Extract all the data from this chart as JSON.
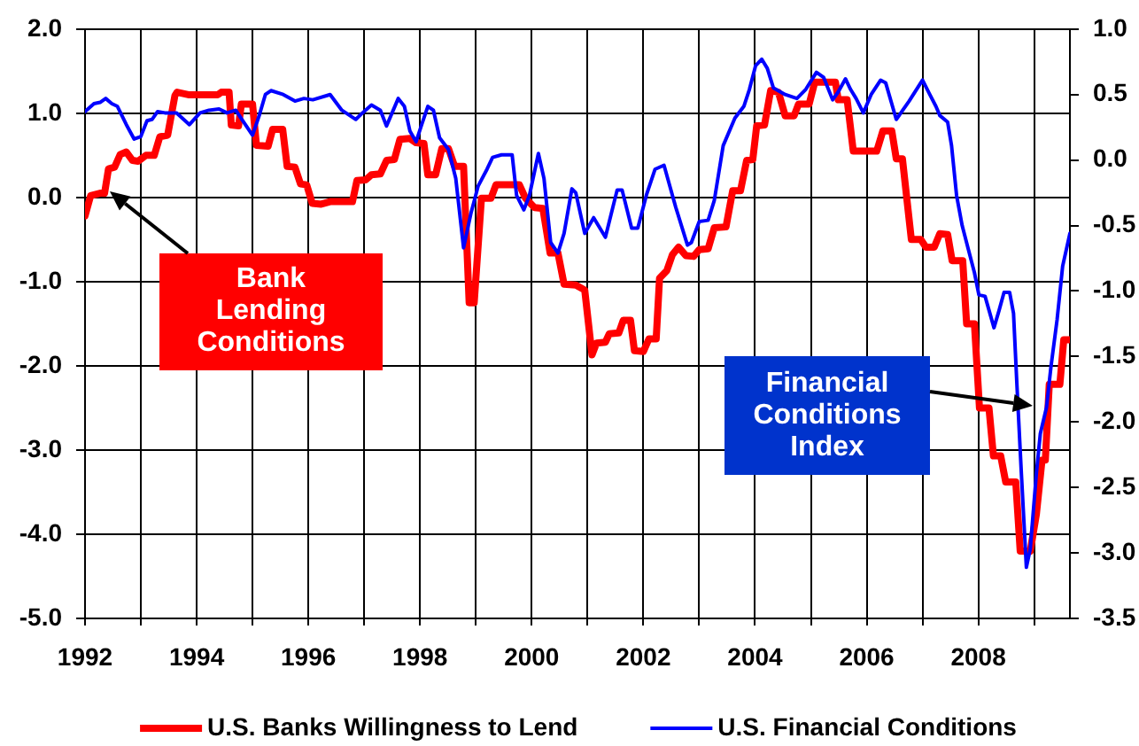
{
  "chart_data": {
    "type": "line",
    "series": [
      {
        "name": "U.S. Banks Willingness to Lend",
        "color": "#ff0000",
        "axis": "y",
        "x": [
          1992.0,
          1992.1,
          1992.27,
          1992.35,
          1992.42,
          1992.53,
          1992.63,
          1992.74,
          1992.85,
          1992.95,
          1993.09,
          1993.24,
          1993.34,
          1993.48,
          1993.61,
          1993.65,
          1993.85,
          1994.38,
          1994.44,
          1994.58,
          1994.62,
          1994.75,
          1994.8,
          1995.0,
          1995.07,
          1995.28,
          1995.36,
          1995.54,
          1995.62,
          1995.76,
          1995.86,
          1995.97,
          1996.07,
          1996.23,
          1996.39,
          1996.79,
          1996.87,
          1997.03,
          1997.13,
          1997.29,
          1997.4,
          1997.54,
          1997.64,
          1997.82,
          1997.93,
          1998.07,
          1998.14,
          1998.28,
          1998.39,
          1998.51,
          1998.62,
          1998.78,
          1998.88,
          1998.97,
          1999.1,
          1999.27,
          1999.36,
          1999.78,
          1999.89,
          2000.05,
          2000.2,
          2000.33,
          2000.47,
          2000.58,
          2000.79,
          2000.95,
          2001.08,
          2001.16,
          2001.32,
          2001.39,
          2001.56,
          2001.64,
          2001.77,
          2001.84,
          2002.0,
          2002.1,
          2002.23,
          2002.29,
          2002.42,
          2002.52,
          2002.63,
          2002.76,
          2002.9,
          2003.0,
          2003.16,
          2003.27,
          2003.48,
          2003.6,
          2003.74,
          2003.85,
          2003.96,
          2004.03,
          2004.17,
          2004.28,
          2004.42,
          2004.54,
          2004.7,
          2004.78,
          2004.97,
          2005.07,
          2005.44,
          2005.49,
          2005.65,
          2005.76,
          2006.18,
          2006.29,
          2006.45,
          2006.53,
          2006.64,
          2006.8,
          2006.97,
          2007.06,
          2007.21,
          2007.31,
          2007.45,
          2007.53,
          2007.72,
          2007.79,
          2007.93,
          2008.02,
          2008.19,
          2008.27,
          2008.4,
          2008.49,
          2008.67,
          2008.75,
          2008.93,
          2009.04,
          2009.14,
          2009.2,
          2009.27,
          2009.46,
          2009.53,
          2009.64
        ],
        "values": [
          -0.22,
          0.02,
          0.05,
          0.05,
          0.34,
          0.36,
          0.51,
          0.54,
          0.44,
          0.43,
          0.5,
          0.5,
          0.72,
          0.74,
          1.21,
          1.25,
          1.22,
          1.22,
          1.25,
          1.25,
          0.86,
          0.85,
          1.11,
          1.11,
          0.62,
          0.61,
          0.81,
          0.81,
          0.37,
          0.36,
          0.16,
          0.15,
          -0.07,
          -0.08,
          -0.05,
          -0.05,
          0.2,
          0.21,
          0.27,
          0.28,
          0.44,
          0.45,
          0.69,
          0.7,
          0.65,
          0.64,
          0.27,
          0.27,
          0.58,
          0.58,
          0.37,
          0.37,
          -1.25,
          -1.25,
          -0.01,
          -0.01,
          0.15,
          0.15,
          -0.01,
          -0.12,
          -0.13,
          -0.66,
          -0.66,
          -1.03,
          -1.04,
          -1.1,
          -1.87,
          -1.73,
          -1.72,
          -1.62,
          -1.61,
          -1.46,
          -1.46,
          -1.82,
          -1.83,
          -1.68,
          -1.68,
          -0.96,
          -0.87,
          -0.68,
          -0.59,
          -0.69,
          -0.7,
          -0.62,
          -0.61,
          -0.36,
          -0.35,
          0.08,
          0.08,
          0.44,
          0.45,
          0.85,
          0.86,
          1.27,
          1.25,
          0.97,
          0.97,
          1.11,
          1.11,
          1.37,
          1.37,
          1.16,
          1.16,
          0.55,
          0.55,
          0.79,
          0.79,
          0.46,
          0.46,
          -0.5,
          -0.5,
          -0.59,
          -0.59,
          -0.43,
          -0.44,
          -0.75,
          -0.75,
          -1.5,
          -1.5,
          -2.5,
          -2.5,
          -3.07,
          -3.07,
          -3.38,
          -3.38,
          -4.2,
          -4.2,
          -3.76,
          -3.12,
          -3.12,
          -2.22,
          -2.22,
          -1.69,
          -1.69
        ]
      },
      {
        "name": "U.S. Financial Conditions",
        "color": "#0000ff",
        "axis": "y2",
        "x": [
          1992.0,
          1992.16,
          1992.27,
          1992.37,
          1992.48,
          1992.58,
          1992.74,
          1992.88,
          1993.0,
          1993.11,
          1993.2,
          1993.3,
          1993.43,
          1993.64,
          1993.87,
          1994.06,
          1994.22,
          1994.4,
          1994.54,
          1994.7,
          1994.81,
          1995.0,
          1995.12,
          1995.23,
          1995.33,
          1995.55,
          1995.76,
          1995.92,
          1996.08,
          1996.39,
          1996.6,
          1996.85,
          1996.97,
          1997.13,
          1997.29,
          1997.4,
          1997.5,
          1997.61,
          1997.72,
          1997.82,
          1997.93,
          1998.03,
          1998.14,
          1998.24,
          1998.35,
          1998.51,
          1998.64,
          1998.78,
          1998.91,
          1999.04,
          1999.2,
          1999.3,
          1999.46,
          1999.65,
          1999.73,
          1999.86,
          1999.96,
          2000.12,
          2000.22,
          2000.34,
          2000.47,
          2000.58,
          2000.72,
          2000.79,
          2000.95,
          2001.11,
          2001.32,
          2001.53,
          2001.62,
          2001.79,
          2001.9,
          2002.06,
          2002.21,
          2002.37,
          2002.58,
          2002.79,
          2002.86,
          2003.0,
          2003.16,
          2003.27,
          2003.43,
          2003.64,
          2003.8,
          2003.9,
          2004.01,
          2004.12,
          2004.22,
          2004.33,
          2004.54,
          2004.75,
          2004.91,
          2005.1,
          2005.23,
          2005.39,
          2005.49,
          2005.62,
          2005.71,
          2005.81,
          2005.94,
          2006.08,
          2006.25,
          2006.34,
          2006.53,
          2006.76,
          2007.0,
          2007.13,
          2007.24,
          2007.31,
          2007.45,
          2007.52,
          2007.61,
          2007.71,
          2007.82,
          2007.93,
          2008.01,
          2008.12,
          2008.28,
          2008.37,
          2008.46,
          2008.56,
          2008.63,
          2008.69,
          2008.77,
          2008.86,
          2008.93,
          2009.04,
          2009.11,
          2009.22,
          2009.3,
          2009.41,
          2009.51,
          2009.64
        ],
        "values": [
          0.37,
          0.43,
          0.44,
          0.47,
          0.43,
          0.41,
          0.27,
          0.16,
          0.18,
          0.3,
          0.31,
          0.37,
          0.36,
          0.36,
          0.27,
          0.36,
          0.38,
          0.39,
          0.36,
          0.38,
          0.31,
          0.19,
          0.34,
          0.5,
          0.53,
          0.5,
          0.45,
          0.47,
          0.46,
          0.5,
          0.38,
          0.31,
          0.36,
          0.42,
          0.38,
          0.26,
          0.36,
          0.47,
          0.41,
          0.22,
          0.14,
          0.27,
          0.41,
          0.38,
          0.17,
          0.08,
          -0.14,
          -0.67,
          -0.41,
          -0.2,
          -0.07,
          0.02,
          0.04,
          0.04,
          -0.27,
          -0.38,
          -0.27,
          0.05,
          -0.14,
          -0.63,
          -0.71,
          -0.56,
          -0.22,
          -0.25,
          -0.56,
          -0.44,
          -0.59,
          -0.23,
          -0.23,
          -0.52,
          -0.52,
          -0.26,
          -0.07,
          -0.04,
          -0.36,
          -0.65,
          -0.63,
          -0.47,
          -0.46,
          -0.31,
          0.11,
          0.32,
          0.41,
          0.54,
          0.72,
          0.77,
          0.7,
          0.55,
          0.5,
          0.47,
          0.54,
          0.67,
          0.63,
          0.46,
          0.52,
          0.62,
          0.54,
          0.47,
          0.36,
          0.5,
          0.61,
          0.59,
          0.31,
          0.45,
          0.61,
          0.5,
          0.41,
          0.34,
          0.29,
          0.11,
          -0.27,
          -0.5,
          -0.68,
          -0.86,
          -1.03,
          -1.04,
          -1.28,
          -1.15,
          -1.01,
          -1.01,
          -1.17,
          -1.71,
          -2.39,
          -3.11,
          -2.97,
          -2.39,
          -2.09,
          -1.89,
          -1.58,
          -1.22,
          -0.81,
          -0.56
        ]
      }
    ],
    "xlim": [
      1992,
      2009.64
    ],
    "xticks": [
      1992,
      {
        "value": 1993,
        "label": null
      },
      1994,
      {
        "value": 1995,
        "label": null
      },
      1996,
      {
        "value": 1997,
        "label": null
      },
      1998,
      {
        "value": 1999,
        "label": null
      },
      2000,
      {
        "value": 2001,
        "label": null
      },
      2002,
      {
        "value": 2003,
        "label": null
      },
      2004,
      {
        "value": 2005,
        "label": null
      },
      2006,
      {
        "value": 2007,
        "label": null
      },
      2008,
      {
        "value": 2009,
        "label": null
      }
    ],
    "ylim": [
      -5,
      2
    ],
    "yticks": [
      {
        "value": -5,
        "label": "-5.0"
      },
      {
        "value": -4,
        "label": "-4.0"
      },
      {
        "value": -3,
        "label": "-3.0"
      },
      {
        "value": -2,
        "label": "-2.0"
      },
      {
        "value": -1,
        "label": "-1.0"
      },
      {
        "value": 0,
        "label": "0.0"
      },
      {
        "value": 1,
        "label": "1.0"
      },
      {
        "value": 2,
        "label": "2.0"
      }
    ],
    "y2lim": [
      -3.5,
      1
    ],
    "y2ticks": [
      -3.5,
      {
        "value": -3,
        "label": "-3.0"
      },
      -2.5,
      {
        "value": -2,
        "label": "-2.0"
      },
      -1.5,
      {
        "value": -1,
        "label": "-1.0"
      },
      -0.5,
      {
        "value": 0,
        "label": "0.0"
      },
      0.5,
      {
        "value": 1,
        "label": "1.0"
      }
    ],
    "grid": true,
    "legend": "bottom",
    "marker": "none",
    "line_style": "solid",
    "annotations": [
      "Bank\nLending\nConditions",
      "Financial\nConditions\nIndex"
    ]
  }
}
